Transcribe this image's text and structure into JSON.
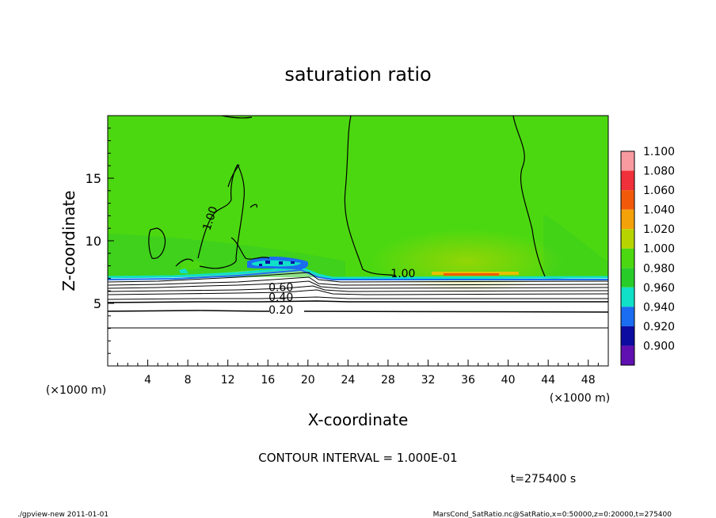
{
  "chart_data": {
    "type": "heatmap",
    "title": "saturation ratio",
    "xlabel": "X-coordinate",
    "ylabel": "Z-coordinate",
    "x_unit_label": "(×1000 m)",
    "y_unit_label": "(×1000 m)",
    "xlim": [
      0,
      50
    ],
    "ylim": [
      0,
      20
    ],
    "x_ticks": [
      4,
      8,
      12,
      16,
      20,
      24,
      28,
      32,
      36,
      40,
      44,
      48
    ],
    "y_ticks": [
      5,
      10,
      15
    ],
    "colorbar": {
      "levels": [
        "1.100",
        "1.080",
        "1.060",
        "1.040",
        "1.020",
        "1.000",
        "0.980",
        "0.960",
        "0.940",
        "0.920",
        "0.900"
      ],
      "colors": [
        "#f99aa0",
        "#f0303a",
        "#f25a0a",
        "#f4a20a",
        "#b8d400",
        "#4cd810",
        "#28cc28",
        "#10e0c8",
        "#1a6cf0",
        "#0c0ca0",
        "#6010b0"
      ]
    },
    "contour_labels": [
      {
        "text": "1.00",
        "x": 29.5,
        "z": 7.4
      },
      {
        "text": "1.00",
        "x": 10.2,
        "z": 11.8
      },
      {
        "text": "0.60",
        "x": 17.3,
        "z": 6.3
      },
      {
        "text": "0.40",
        "x": 17.3,
        "z": 5.5
      },
      {
        "text": "0.20",
        "x": 17.3,
        "z": 4.5
      }
    ],
    "contour_interval_text": "CONTOUR INTERVAL = 1.000E-01",
    "time_text": "t=275400 s",
    "footer_left": "./gpview-new  2011-01-01",
    "footer_right": "MarsCond_SatRatio.nc@SatRatio,x=0:50000,z=0:20000,t=275400"
  }
}
